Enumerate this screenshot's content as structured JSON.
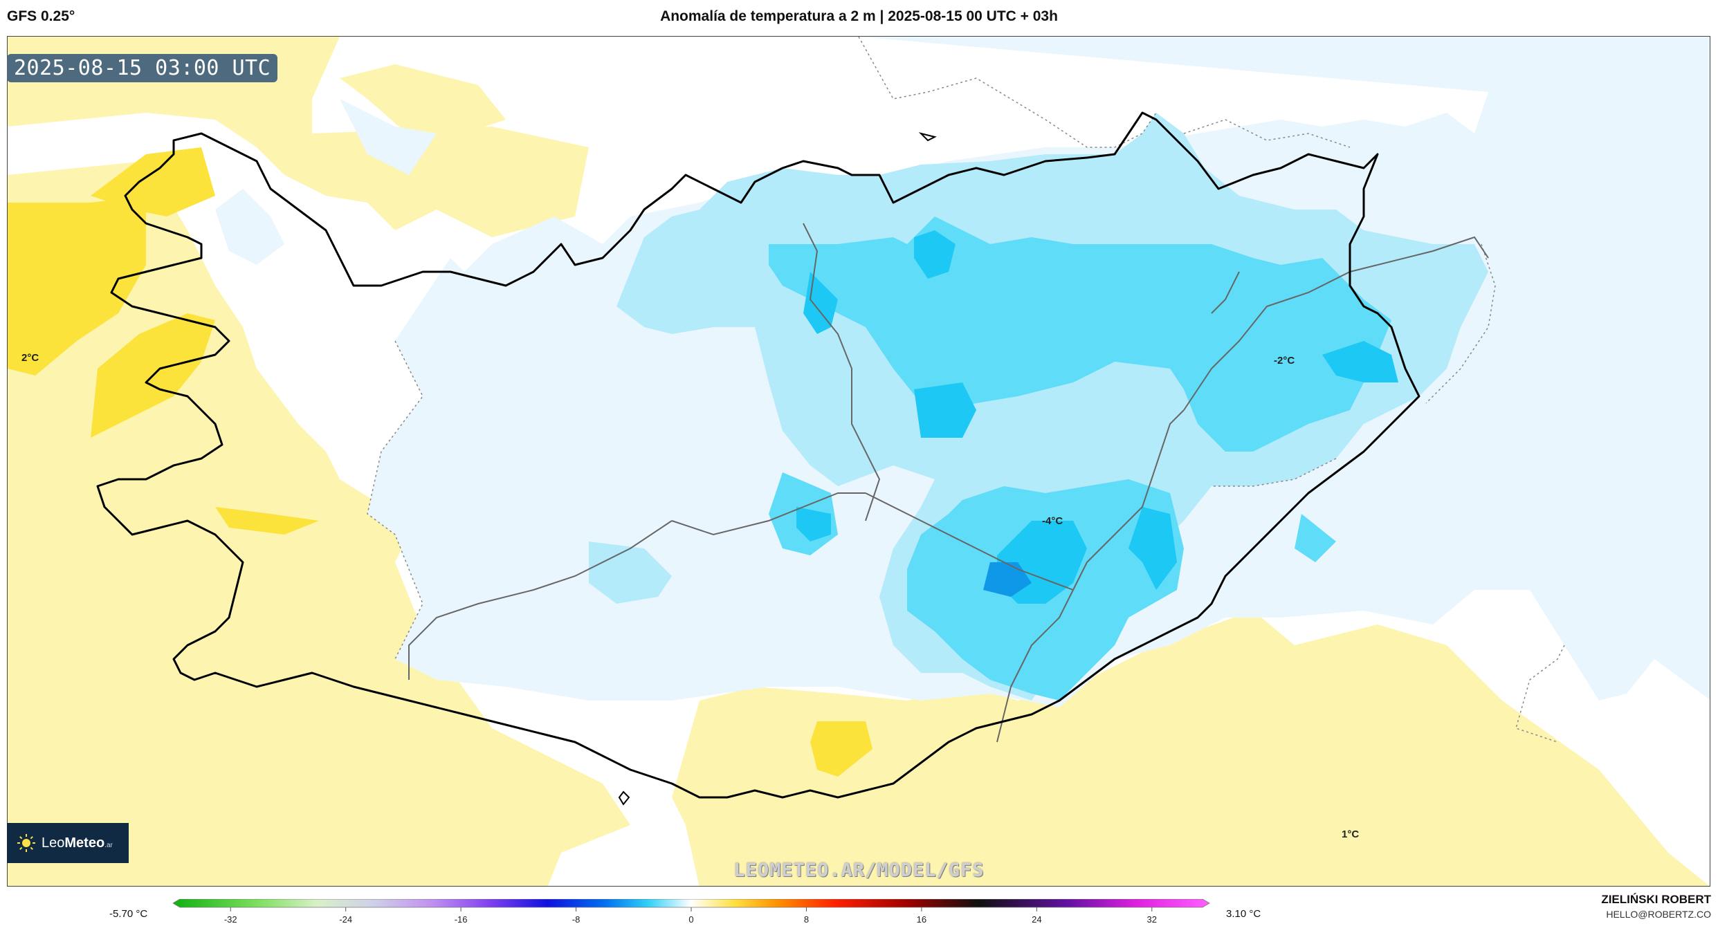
{
  "header": {
    "model": "GFS 0.25°",
    "title": "Anomalía de temperatura a 2 m | 2025-08-15 00 UTC + 03h"
  },
  "map": {
    "timestamp": "2025-08-15 03:00 UTC",
    "watermark": "LEOMETEO.AR/MODEL/GFS",
    "logo": {
      "brand_light": "Leo",
      "brand_bold": "Meteo",
      "suffix": ".ar"
    },
    "labels": {
      "west": "2°C",
      "east": "-2°C",
      "center": "-4°C",
      "south": "1°C"
    }
  },
  "legend": {
    "min_value": "-5.70 °C",
    "max_value": "3.10 °C",
    "ticks": [
      "-32",
      "-24",
      "-16",
      "-8",
      "0",
      "8",
      "16",
      "24",
      "32"
    ],
    "tick_values": [
      -32,
      -24,
      -16,
      -8,
      0,
      8,
      16,
      24,
      32
    ],
    "range": [
      -36,
      36
    ],
    "stops": [
      {
        "v": -36,
        "c": "#10b010"
      },
      {
        "v": -30,
        "c": "#7fe060"
      },
      {
        "v": -26,
        "c": "#d8f0c8"
      },
      {
        "v": -22,
        "c": "#cfcfe8"
      },
      {
        "v": -18,
        "c": "#c090f0"
      },
      {
        "v": -14,
        "c": "#8040f0"
      },
      {
        "v": -10,
        "c": "#1010e0"
      },
      {
        "v": -6,
        "c": "#0070f0"
      },
      {
        "v": -3,
        "c": "#30d0f8"
      },
      {
        "v": 0,
        "c": "#ffffff"
      },
      {
        "v": 3,
        "c": "#ffe040"
      },
      {
        "v": 6,
        "c": "#ff9000"
      },
      {
        "v": 10,
        "c": "#ff2000"
      },
      {
        "v": 15,
        "c": "#a00000"
      },
      {
        "v": 20,
        "c": "#101010"
      },
      {
        "v": 26,
        "c": "#6010a0"
      },
      {
        "v": 31,
        "c": "#e020e0"
      },
      {
        "v": 36,
        "c": "#ff60ff"
      }
    ]
  },
  "credit": {
    "name": "ZIELIŃSKI ROBERT",
    "email": "HELLO@ROBERTZ.CO"
  },
  "colors": {
    "warm_light": "#fdf4b0",
    "warm_strong": "#fbe33c",
    "cold_1": "#eaf6fd",
    "cold_2": "#b3ebfa",
    "cold_3": "#5edcf8",
    "cold_4": "#1ec8f5",
    "cold_5": "#1098e8"
  }
}
